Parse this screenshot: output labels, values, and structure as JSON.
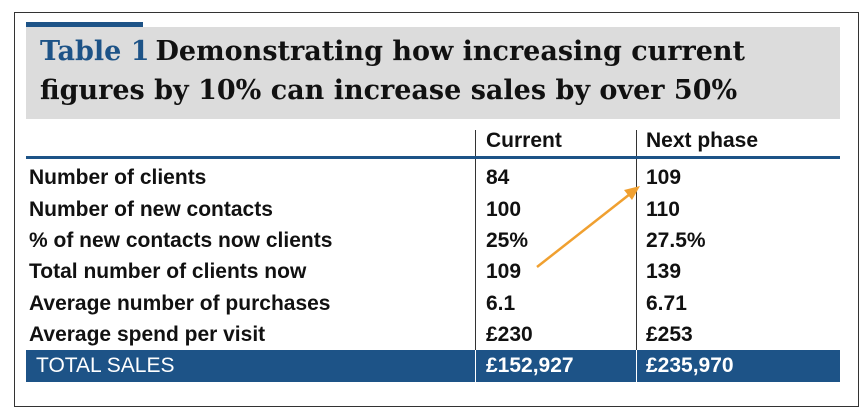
{
  "title": {
    "label": "Table 1",
    "line1": "Demonstrating how increasing current",
    "line2": "figures by 10% can increase sales by over 50%"
  },
  "columns": [
    "",
    "Current",
    "Next phase"
  ],
  "rows": [
    {
      "label": "Number of clients",
      "current": "84",
      "next": "109"
    },
    {
      "label": "Number of new contacts",
      "current": "100",
      "next": "110"
    },
    {
      "label": "% of new contacts now clients",
      "current": "25%",
      "next": "27.5%"
    },
    {
      "label": "Total number of clients now",
      "current": "109",
      "next": "139"
    },
    {
      "label": "Average number of purchases",
      "current": "6.1",
      "next": "6.71"
    },
    {
      "label": "Average spend per visit",
      "current": "£230",
      "next": "£253"
    }
  ],
  "total": {
    "label": "TOTAL SALES",
    "current": "£152,927",
    "next": "£235,970"
  },
  "colors": {
    "accent": "#1d5387",
    "title_bg": "#dcdcdc",
    "arrow": "#f0a030"
  },
  "annotation": {
    "arrow": "from 'Total number of clients now' current value to 'Number of clients' next phase value"
  }
}
